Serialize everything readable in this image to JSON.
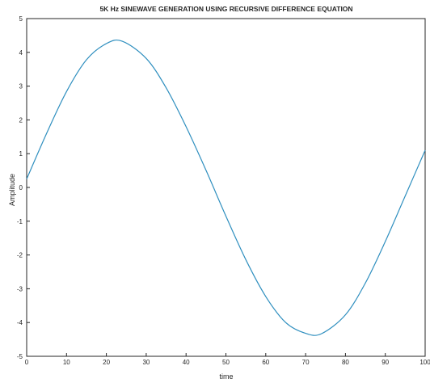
{
  "chart_data": {
    "type": "line",
    "title": "5K Hz SINEWAVE GENERATION USING RECURSIVE DIFFERENCE EQUATION",
    "xlabel": "time",
    "ylabel": "Amplitude",
    "xlim": [
      0,
      100
    ],
    "ylim": [
      -5,
      5
    ],
    "xticks": [
      "0",
      "10",
      "20",
      "30",
      "40",
      "50",
      "60",
      "70",
      "80",
      "90",
      "100"
    ],
    "yticks": [
      "5",
      "4",
      "3",
      "2",
      "1",
      "0",
      "-1",
      "-2",
      "-3",
      "-4",
      "-5"
    ],
    "grid": false,
    "line_color": "#2f8fbf",
    "series": [
      {
        "x": [
          0,
          5,
          10,
          15,
          20,
          24,
          30,
          35,
          40,
          45,
          50,
          55,
          60,
          65,
          70,
          74,
          80,
          85,
          90,
          95,
          100
        ],
        "values": [
          0.25,
          1.6,
          2.84,
          3.78,
          4.26,
          4.33,
          3.82,
          2.95,
          1.8,
          0.51,
          -0.85,
          -2.14,
          -3.23,
          -4.0,
          -4.32,
          -4.33,
          -3.77,
          -2.83,
          -1.6,
          -0.25,
          1.1
        ]
      }
    ]
  }
}
